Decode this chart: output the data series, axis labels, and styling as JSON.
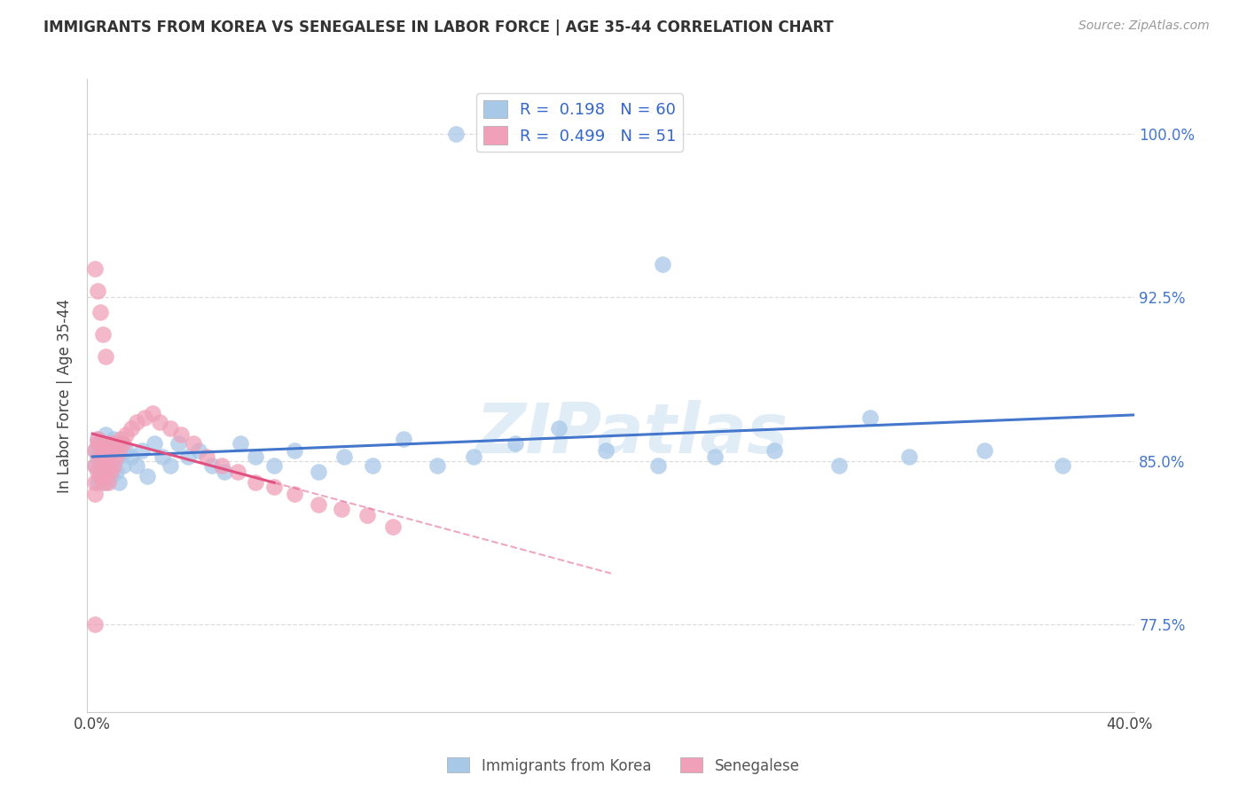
{
  "title": "IMMIGRANTS FROM KOREA VS SENEGALESE IN LABOR FORCE | AGE 35-44 CORRELATION CHART",
  "source": "Source: ZipAtlas.com",
  "ylabel": "In Labor Force | Age 35-44",
  "xlim": [
    -0.002,
    0.402
  ],
  "ylim": [
    0.735,
    1.025
  ],
  "yticks": [
    0.775,
    0.85,
    0.925,
    1.0
  ],
  "yticklabels": [
    "77.5%",
    "85.0%",
    "92.5%",
    "100.0%"
  ],
  "korea_color": "#a8c8e8",
  "senegal_color": "#f0a0b8",
  "korea_line_color": "#4477cc",
  "senegal_line_color": "#e05080",
  "watermark": "ZIPatlas",
  "background_color": "#ffffff",
  "grid_color": "#dddddd",
  "korea_R": 0.198,
  "korea_N": 60,
  "senegal_R": 0.499,
  "senegal_N": 51,
  "korea_x": [
    0.001,
    0.001,
    0.002,
    0.002,
    0.002,
    0.003,
    0.003,
    0.003,
    0.004,
    0.004,
    0.005,
    0.005,
    0.005,
    0.006,
    0.006,
    0.007,
    0.007,
    0.008,
    0.008,
    0.009,
    0.01,
    0.01,
    0.011,
    0.012,
    0.013,
    0.015,
    0.017,
    0.019,
    0.021,
    0.024,
    0.027,
    0.03,
    0.033,
    0.037,
    0.041,
    0.046,
    0.051,
    0.057,
    0.063,
    0.07,
    0.078,
    0.087,
    0.097,
    0.108,
    0.12,
    0.133,
    0.147,
    0.163,
    0.18,
    0.198,
    0.218,
    0.24,
    0.263,
    0.288,
    0.315,
    0.344,
    0.374,
    0.14,
    0.22,
    0.3
  ],
  "korea_y": [
    0.848,
    0.855,
    0.84,
    0.852,
    0.86,
    0.845,
    0.858,
    0.843,
    0.855,
    0.848,
    0.84,
    0.852,
    0.862,
    0.845,
    0.858,
    0.843,
    0.855,
    0.848,
    0.86,
    0.845,
    0.84,
    0.852,
    0.858,
    0.848,
    0.855,
    0.852,
    0.848,
    0.855,
    0.843,
    0.858,
    0.852,
    0.848,
    0.858,
    0.852,
    0.855,
    0.848,
    0.845,
    0.858,
    0.852,
    0.848,
    0.855,
    0.845,
    0.852,
    0.848,
    0.86,
    0.848,
    0.852,
    0.858,
    0.865,
    0.855,
    0.848,
    0.852,
    0.855,
    0.848,
    0.852,
    0.855,
    0.848,
    1.0,
    0.94,
    0.87
  ],
  "senegal_x": [
    0.001,
    0.001,
    0.001,
    0.001,
    0.002,
    0.002,
    0.002,
    0.003,
    0.003,
    0.003,
    0.004,
    0.004,
    0.004,
    0.005,
    0.005,
    0.006,
    0.006,
    0.006,
    0.007,
    0.007,
    0.008,
    0.008,
    0.009,
    0.01,
    0.011,
    0.012,
    0.013,
    0.015,
    0.017,
    0.02,
    0.023,
    0.026,
    0.03,
    0.034,
    0.039,
    0.044,
    0.05,
    0.056,
    0.063,
    0.07,
    0.078,
    0.087,
    0.096,
    0.106,
    0.116,
    0.001,
    0.002,
    0.003,
    0.004,
    0.005,
    0.001
  ],
  "senegal_y": [
    0.855,
    0.848,
    0.84,
    0.835,
    0.858,
    0.845,
    0.86,
    0.848,
    0.852,
    0.843,
    0.855,
    0.84,
    0.858,
    0.843,
    0.852,
    0.84,
    0.848,
    0.858,
    0.845,
    0.855,
    0.848,
    0.858,
    0.852,
    0.855,
    0.86,
    0.858,
    0.862,
    0.865,
    0.868,
    0.87,
    0.872,
    0.868,
    0.865,
    0.862,
    0.858,
    0.852,
    0.848,
    0.845,
    0.84,
    0.838,
    0.835,
    0.83,
    0.828,
    0.825,
    0.82,
    0.938,
    0.928,
    0.918,
    0.908,
    0.898,
    0.775
  ]
}
